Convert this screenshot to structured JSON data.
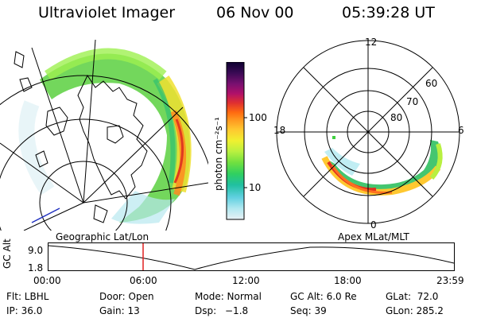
{
  "header": {
    "instrument": "Ultraviolet Imager",
    "date": "06 Nov 00",
    "time": "05:39:28 UT"
  },
  "colorbar": {
    "unit_label": "photon cm⁻²s⁻¹",
    "ticks": [
      "100",
      "10"
    ],
    "colors": [
      "#0d0030",
      "#3a0a55",
      "#7a1070",
      "#b0106a",
      "#e03030",
      "#ff6a10",
      "#ff9a20",
      "#ffc830",
      "#f0f030",
      "#b8f040",
      "#70e040",
      "#30d060",
      "#20c0a0",
      "#60d0e0",
      "#b0e8f0",
      "#e8f0f4"
    ]
  },
  "left_panel": {
    "caption": "Geographic Lat/Lon"
  },
  "right_panel": {
    "caption": "Apex MLat/MLT",
    "mlt_labels": {
      "top": "12",
      "left": "18",
      "right": "6",
      "bottom": "0"
    },
    "lat_labels": [
      "60",
      "70",
      "80"
    ]
  },
  "timeline": {
    "ylabel": "GC Alt",
    "yticks": [
      "9.0",
      "1.8"
    ],
    "xticks": [
      "00:00",
      "06:00",
      "12:00",
      "18:00",
      "23:59"
    ],
    "marker_color": "#e02020"
  },
  "info": {
    "flt": "Flt: LBHL",
    "ip": "IP: 36.0",
    "door": "Door: Open",
    "gain": "Gain: 13",
    "mode": "Mode: Normal",
    "dsp": "Dsp:",
    "dsp_val": "−1.8",
    "gcalt": "GC Alt: 6.0 Re",
    "seq": "Seq: 39",
    "glat": "GLat:  72.0",
    "glon": "GLon: 285.2"
  }
}
